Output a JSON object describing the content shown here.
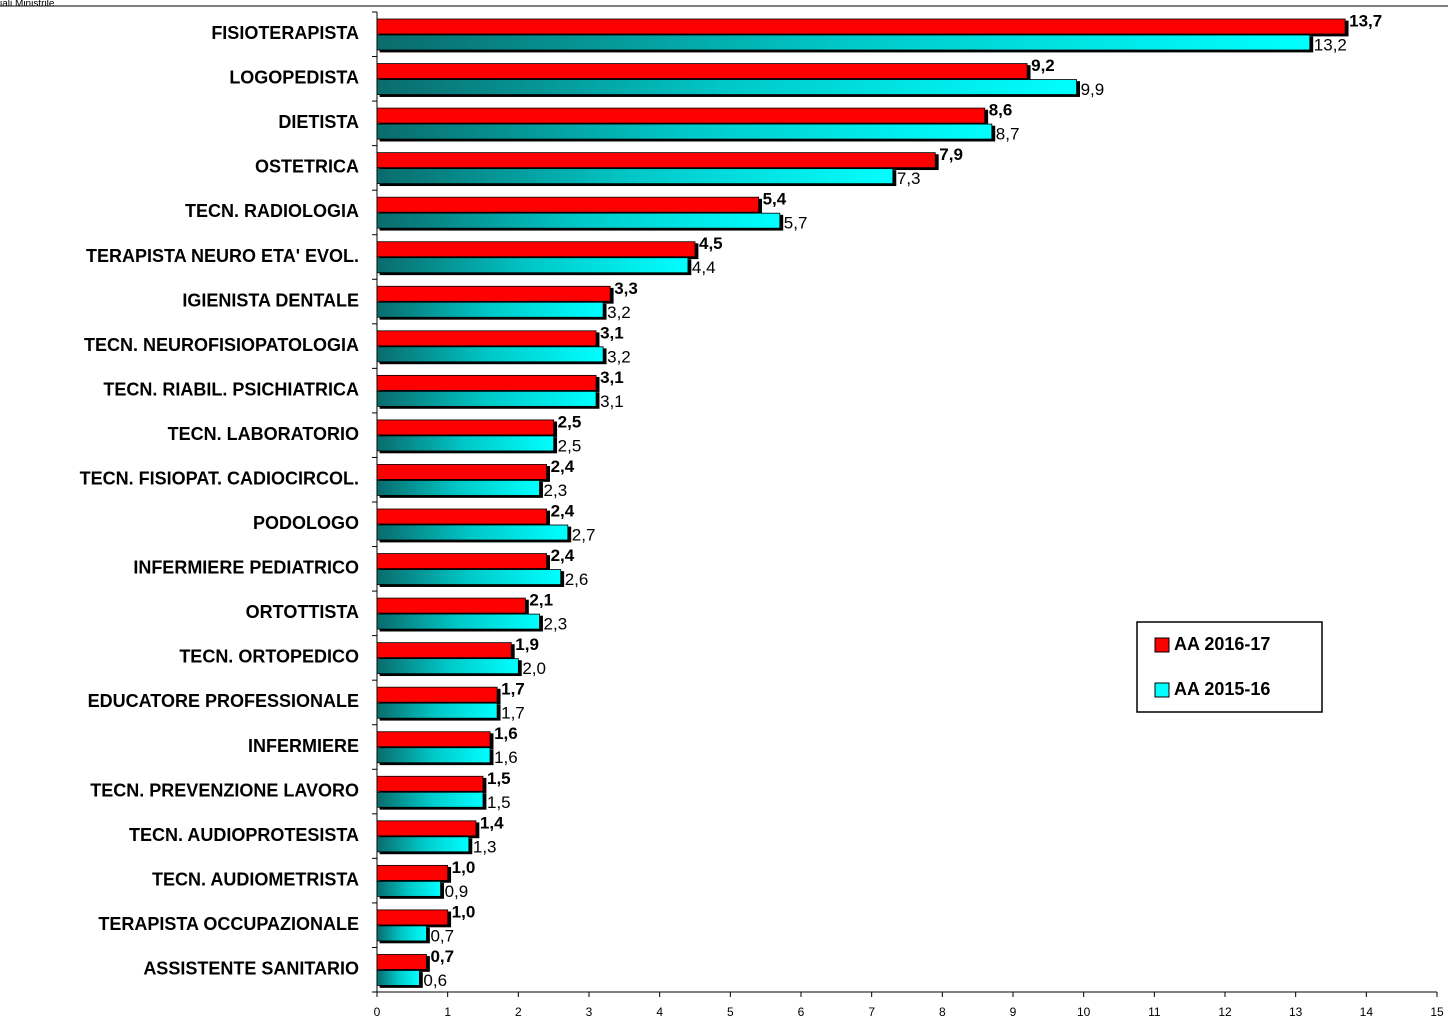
{
  "source": "iali Ministrile",
  "chart_data": {
    "type": "hbar",
    "categories": [
      "FISIOTERAPISTA",
      "LOGOPEDISTA",
      "DIETISTA",
      "OSTETRICA",
      "TECN. RADIOLOGIA",
      "TERAPISTA NEURO ETA' EVOL.",
      "IGIENISTA DENTALE",
      "TECN. NEUROFISIOPATOLOGIA",
      "TECN. RIABIL. PSICHIATRICA",
      "TECN. LABORATORIO",
      "TECN. FISIOPAT. CADIOCIRCOL.",
      "PODOLOGO",
      "INFERMIERE PEDIATRICO",
      "ORTOTTISTA",
      "TECN. ORTOPEDICO",
      "EDUCATORE PROFESSIONALE",
      "INFERMIERE",
      "TECN. PREVENZIONE LAVORO",
      "TECN. AUDIOPROTESISTA",
      "TECN. AUDIOMETRISTA",
      "TERAPISTA OCCUPAZIONALE",
      "ASSISTENTE SANITARIO"
    ],
    "series": [
      {
        "name": "AA 2016-17",
        "color": "#ff0000",
        "values": [
          13.7,
          9.2,
          8.6,
          7.9,
          5.4,
          4.5,
          3.3,
          3.1,
          3.1,
          2.5,
          2.4,
          2.4,
          2.4,
          2.1,
          1.9,
          1.7,
          1.6,
          1.5,
          1.4,
          1.0,
          1.0,
          0.7
        ],
        "value_labels": [
          "13,7",
          "9,2",
          "8,6",
          "7,9",
          "5,4",
          "4,5",
          "3,3",
          "3,1",
          "3,1",
          "2,5",
          "2,4",
          "2,4",
          "2,4",
          "2,1",
          "1,9",
          "1,7",
          "1,6",
          "1,5",
          "1,4",
          "1,0",
          "1,0",
          "0,7"
        ]
      },
      {
        "name": "AA 2015-16",
        "color": "#00ffff",
        "values": [
          13.2,
          9.9,
          8.7,
          7.3,
          5.7,
          4.4,
          3.2,
          3.2,
          3.1,
          2.5,
          2.3,
          2.7,
          2.6,
          2.3,
          2.0,
          1.7,
          1.6,
          1.5,
          1.3,
          0.9,
          0.7,
          0.6
        ],
        "value_labels": [
          "13,2",
          "9,9",
          "8,7",
          "7,3",
          "5,7",
          "4,4",
          "3,2",
          "3,2",
          "3,1",
          "2,5",
          "2,3",
          "2,7",
          "2,6",
          "2,3",
          "2,0",
          "1,7",
          "1,6",
          "1,5",
          "1,3",
          "0,9",
          "0,7",
          "0,6"
        ]
      }
    ],
    "xlim": [
      0,
      15
    ],
    "xticks": [
      0,
      1,
      2,
      3,
      4,
      5,
      6,
      7,
      8,
      9,
      10,
      11,
      12,
      13,
      14,
      15
    ],
    "legend": "right"
  }
}
